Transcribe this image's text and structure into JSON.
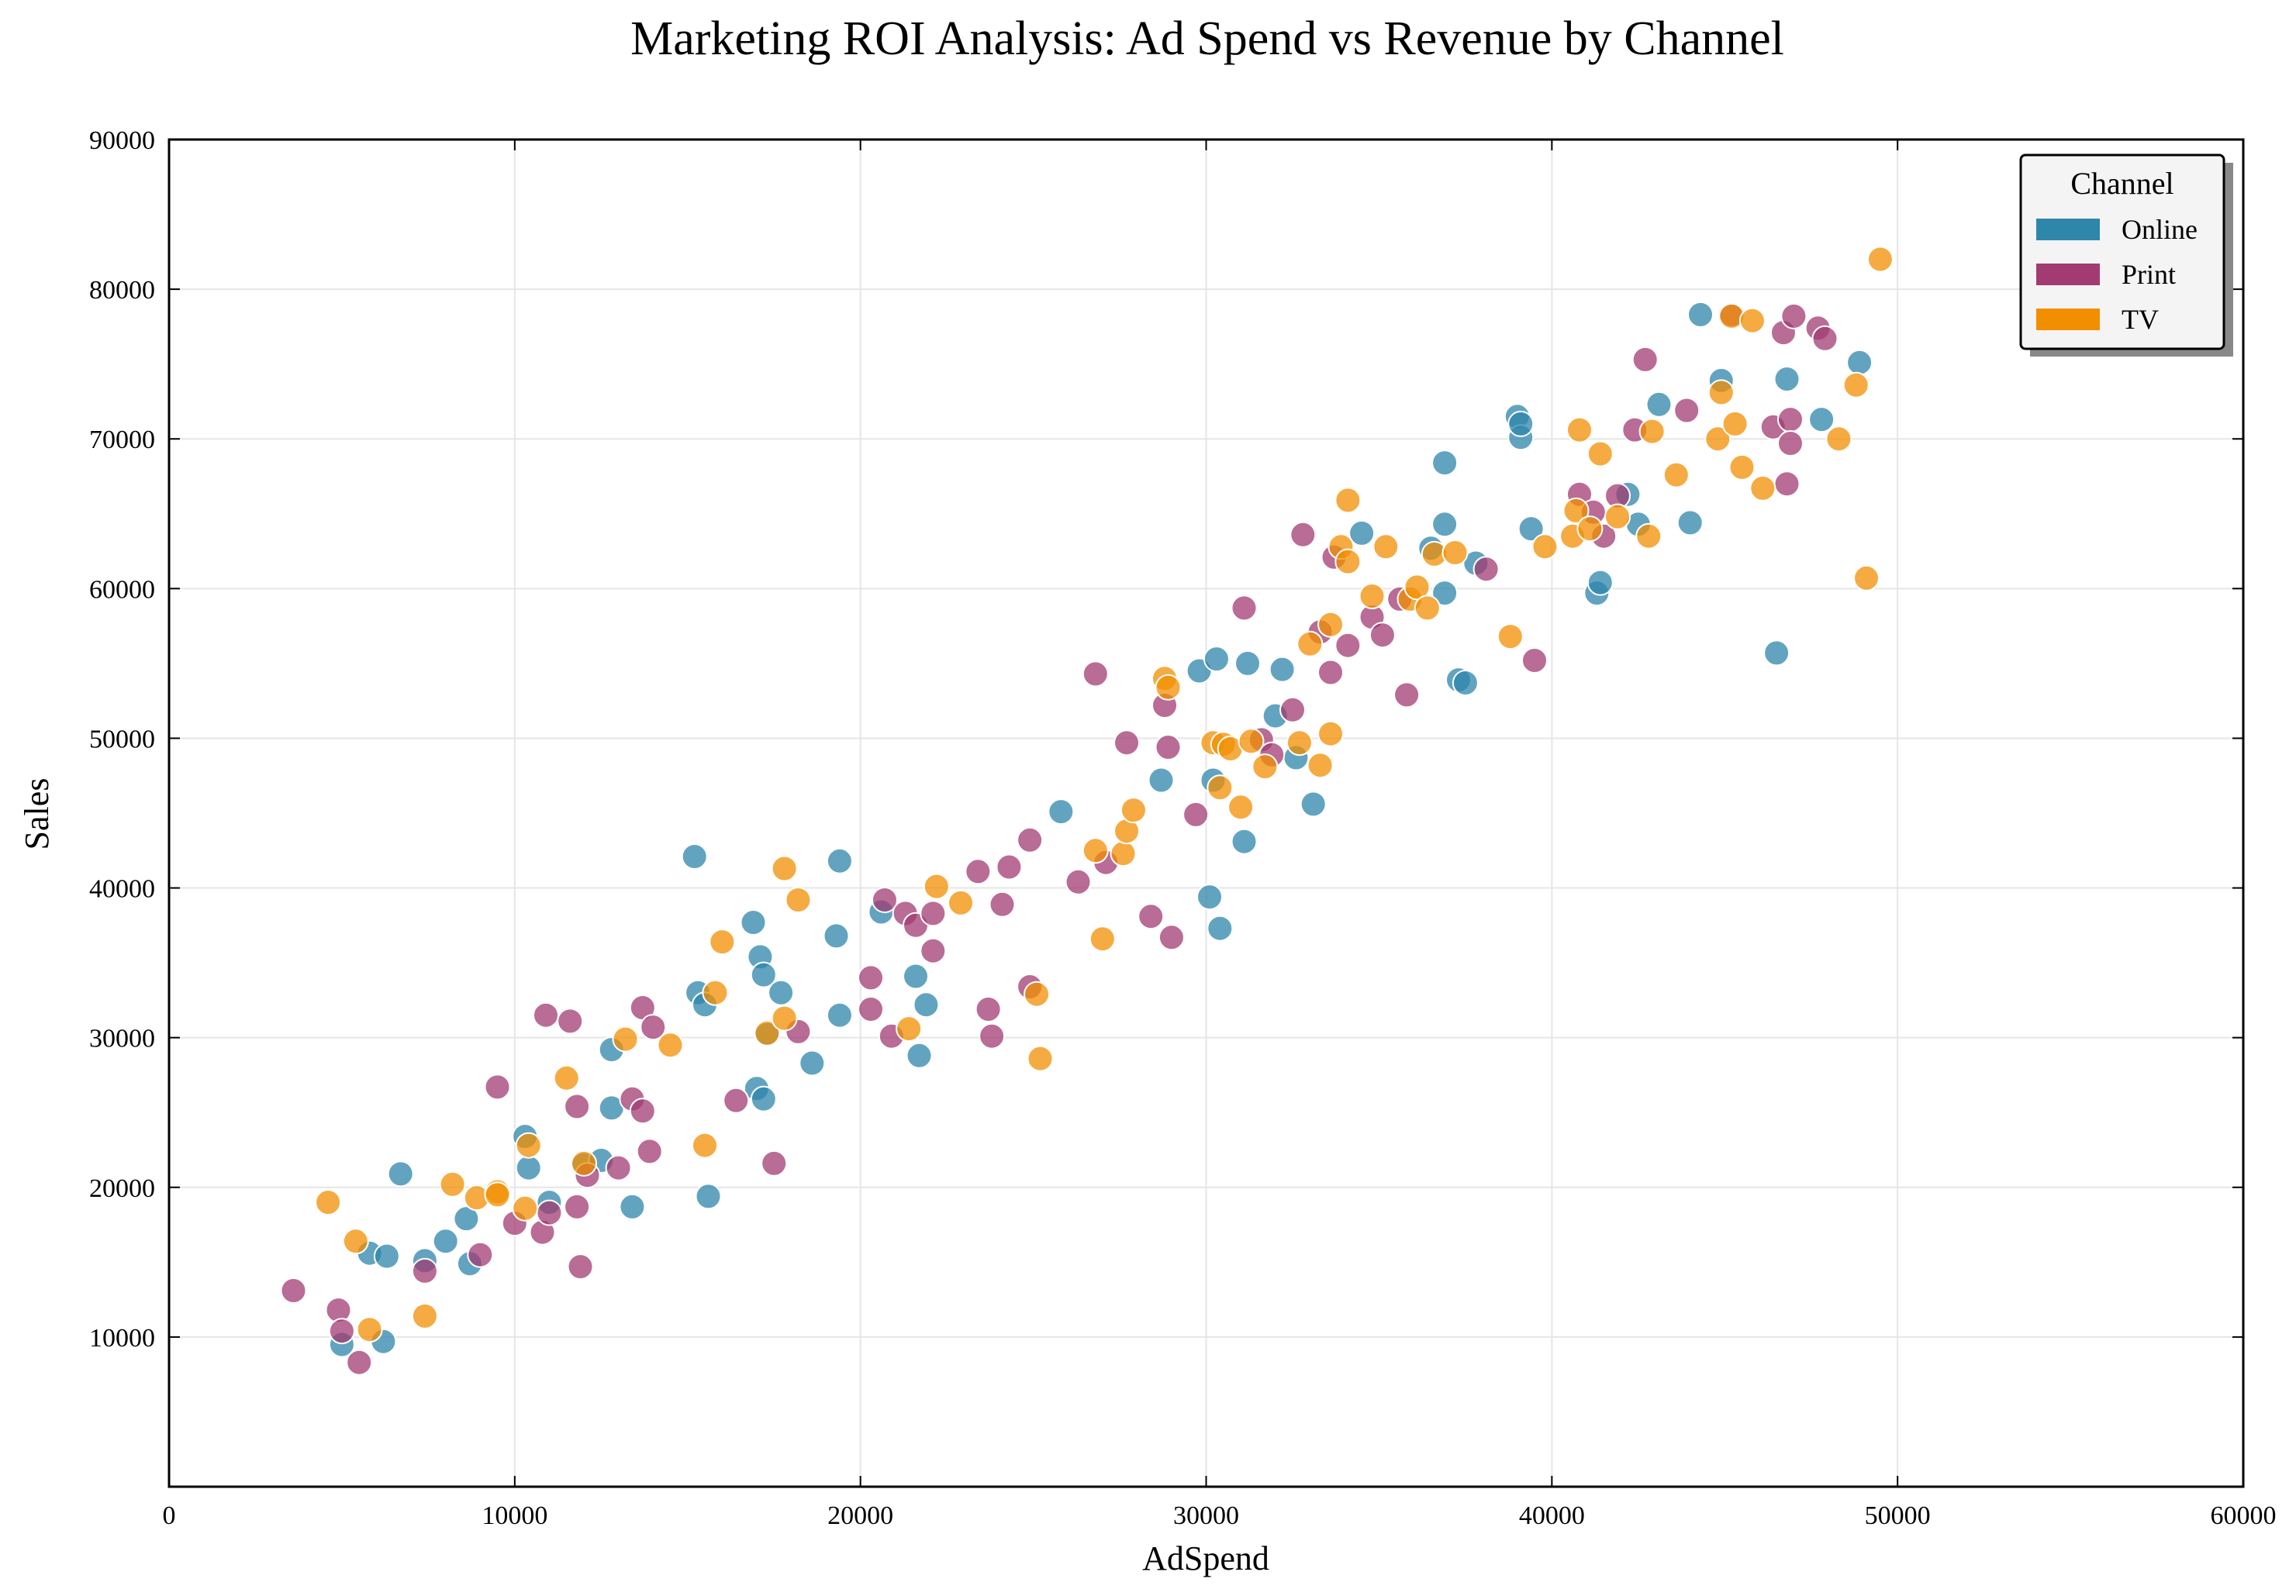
{
  "chart_data": {
    "type": "scatter",
    "title": "Marketing ROI Analysis: Ad Spend vs Revenue by Channel",
    "xlabel": "AdSpend",
    "ylabel": "Sales",
    "xlim": [
      0,
      60000
    ],
    "ylim": [
      0,
      90000
    ],
    "xticks": [
      0,
      10000,
      20000,
      30000,
      40000,
      50000,
      60000
    ],
    "yticks": [
      10000,
      20000,
      30000,
      40000,
      50000,
      60000,
      70000,
      80000,
      90000
    ],
    "grid": true,
    "legend": {
      "title": "Channel",
      "position": "top-right"
    },
    "series": [
      {
        "name": "Online",
        "color": "#2E86AB",
        "points": [
          [
            5000,
            9500
          ],
          [
            5800,
            15600
          ],
          [
            6300,
            15400
          ],
          [
            6200,
            9700
          ],
          [
            6700,
            20900
          ],
          [
            7400,
            15100
          ],
          [
            8000,
            16400
          ],
          [
            8600,
            17900
          ],
          [
            8700,
            14900
          ],
          [
            10300,
            23400
          ],
          [
            10400,
            21300
          ],
          [
            11000,
            19000
          ],
          [
            12000,
            21500
          ],
          [
            12500,
            21800
          ],
          [
            12800,
            29200
          ],
          [
            12800,
            25300
          ],
          [
            13400,
            18700
          ],
          [
            15200,
            42100
          ],
          [
            15300,
            33000
          ],
          [
            15500,
            32200
          ],
          [
            15600,
            19400
          ],
          [
            16900,
            37700
          ],
          [
            17000,
            26600
          ],
          [
            17100,
            35400
          ],
          [
            17200,
            34200
          ],
          [
            17300,
            30200
          ],
          [
            17200,
            25900
          ],
          [
            17700,
            33000
          ],
          [
            18600,
            28300
          ],
          [
            19300,
            36800
          ],
          [
            19400,
            31500
          ],
          [
            19400,
            41800
          ],
          [
            20600,
            38400
          ],
          [
            21600,
            34100
          ],
          [
            21700,
            28800
          ],
          [
            21900,
            32200
          ],
          [
            25800,
            45100
          ],
          [
            28700,
            47200
          ],
          [
            29800,
            54500
          ],
          [
            30100,
            39400
          ],
          [
            30200,
            47200
          ],
          [
            30300,
            55300
          ],
          [
            30400,
            37300
          ],
          [
            31100,
            43100
          ],
          [
            31200,
            55000
          ],
          [
            32000,
            51500
          ],
          [
            32200,
            54600
          ],
          [
            32600,
            48700
          ],
          [
            33100,
            45600
          ],
          [
            34500,
            63700
          ],
          [
            36500,
            62700
          ],
          [
            36900,
            64300
          ],
          [
            36900,
            68400
          ],
          [
            36900,
            59700
          ],
          [
            37300,
            53900
          ],
          [
            37500,
            53700
          ],
          [
            37800,
            61700
          ],
          [
            39000,
            71500
          ],
          [
            39100,
            70100
          ],
          [
            39100,
            71000
          ],
          [
            39400,
            64000
          ],
          [
            41300,
            59700
          ],
          [
            41400,
            60400
          ],
          [
            42200,
            66300
          ],
          [
            42500,
            64300
          ],
          [
            43100,
            72300
          ],
          [
            44000,
            64400
          ],
          [
            44300,
            78300
          ],
          [
            44900,
            73900
          ],
          [
            46500,
            55700
          ],
          [
            46800,
            74000
          ],
          [
            47800,
            71300
          ],
          [
            48900,
            75100
          ]
        ]
      },
      {
        "name": "Print",
        "color": "#A23B72",
        "points": [
          [
            3600,
            13100
          ],
          [
            4900,
            11800
          ],
          [
            5000,
            10400
          ],
          [
            5500,
            8300
          ],
          [
            7400,
            14400
          ],
          [
            9000,
            15500
          ],
          [
            9500,
            26700
          ],
          [
            10000,
            17600
          ],
          [
            10800,
            17000
          ],
          [
            10900,
            31500
          ],
          [
            11000,
            18300
          ],
          [
            11600,
            31100
          ],
          [
            11800,
            18700
          ],
          [
            11800,
            25400
          ],
          [
            11900,
            14700
          ],
          [
            12100,
            20800
          ],
          [
            13000,
            21300
          ],
          [
            13400,
            25900
          ],
          [
            13700,
            32000
          ],
          [
            13700,
            25100
          ],
          [
            13900,
            22400
          ],
          [
            14000,
            30700
          ],
          [
            18200,
            30400
          ],
          [
            17500,
            21600
          ],
          [
            20300,
            34000
          ],
          [
            20300,
            31900
          ],
          [
            20700,
            39200
          ],
          [
            20900,
            30100
          ],
          [
            21300,
            38300
          ],
          [
            21600,
            37500
          ],
          [
            22100,
            38300
          ],
          [
            22100,
            35800
          ],
          [
            23400,
            41100
          ],
          [
            23700,
            31900
          ],
          [
            23800,
            30100
          ],
          [
            24100,
            38900
          ],
          [
            24300,
            41400
          ],
          [
            24900,
            43200
          ],
          [
            24900,
            33400
          ],
          [
            16400,
            25800
          ],
          [
            26300,
            40400
          ],
          [
            26800,
            54300
          ],
          [
            27100,
            41700
          ],
          [
            27700,
            49700
          ],
          [
            28400,
            38100
          ],
          [
            28800,
            52200
          ],
          [
            28900,
            49400
          ],
          [
            29000,
            36700
          ],
          [
            29700,
            44900
          ],
          [
            31100,
            58700
          ],
          [
            31600,
            49900
          ],
          [
            31900,
            48900
          ],
          [
            32500,
            51900
          ],
          [
            32800,
            63600
          ],
          [
            33300,
            57100
          ],
          [
            33600,
            54400
          ],
          [
            33700,
            62100
          ],
          [
            34100,
            56200
          ],
          [
            34800,
            58100
          ],
          [
            35100,
            56900
          ],
          [
            35600,
            59300
          ],
          [
            35800,
            52900
          ],
          [
            38100,
            61300
          ],
          [
            39500,
            55200
          ],
          [
            40800,
            66300
          ],
          [
            41200,
            65100
          ],
          [
            41500,
            63500
          ],
          [
            41900,
            66200
          ],
          [
            42400,
            70600
          ],
          [
            42700,
            75300
          ],
          [
            43900,
            71900
          ],
          [
            45200,
            78300
          ],
          [
            46400,
            70800
          ],
          [
            46700,
            77100
          ],
          [
            46800,
            67000
          ],
          [
            46900,
            71300
          ],
          [
            46900,
            69700
          ],
          [
            47000,
            78200
          ],
          [
            47700,
            77400
          ],
          [
            47900,
            76700
          ]
        ]
      },
      {
        "name": "TV",
        "color": "#F18F01",
        "points": [
          [
            4600,
            19000
          ],
          [
            5400,
            16400
          ],
          [
            5800,
            10500
          ],
          [
            7400,
            11400
          ],
          [
            8200,
            20200
          ],
          [
            8900,
            19300
          ],
          [
            9500,
            19700
          ],
          [
            9500,
            19500
          ],
          [
            10300,
            18600
          ],
          [
            10400,
            22800
          ],
          [
            11500,
            27300
          ],
          [
            12000,
            21600
          ],
          [
            13200,
            29900
          ],
          [
            14500,
            29500
          ],
          [
            15500,
            22800
          ],
          [
            15800,
            33000
          ],
          [
            16000,
            36400
          ],
          [
            17300,
            30300
          ],
          [
            17800,
            41300
          ],
          [
            17800,
            31300
          ],
          [
            18200,
            39200
          ],
          [
            21400,
            30600
          ],
          [
            22200,
            40100
          ],
          [
            22900,
            39000
          ],
          [
            25100,
            32900
          ],
          [
            25200,
            28600
          ],
          [
            26800,
            42500
          ],
          [
            27000,
            36600
          ],
          [
            27600,
            42300
          ],
          [
            27700,
            43800
          ],
          [
            27900,
            45200
          ],
          [
            28800,
            54000
          ],
          [
            28900,
            53400
          ],
          [
            30200,
            49700
          ],
          [
            30400,
            46700
          ],
          [
            30500,
            49600
          ],
          [
            30700,
            49300
          ],
          [
            31000,
            45400
          ],
          [
            31300,
            49800
          ],
          [
            31700,
            48100
          ],
          [
            32700,
            49700
          ],
          [
            33000,
            56300
          ],
          [
            33300,
            48200
          ],
          [
            33600,
            57600
          ],
          [
            33600,
            50300
          ],
          [
            33900,
            62800
          ],
          [
            34100,
            61800
          ],
          [
            34100,
            65900
          ],
          [
            34800,
            59500
          ],
          [
            35200,
            62800
          ],
          [
            35900,
            59300
          ],
          [
            36100,
            60100
          ],
          [
            36400,
            58700
          ],
          [
            36600,
            62300
          ],
          [
            37200,
            62400
          ],
          [
            38800,
            56800
          ],
          [
            39800,
            62800
          ],
          [
            40600,
            63500
          ],
          [
            40700,
            65200
          ],
          [
            40800,
            70600
          ],
          [
            41100,
            64000
          ],
          [
            41400,
            69000
          ],
          [
            41900,
            64800
          ],
          [
            42800,
            63500
          ],
          [
            42900,
            70500
          ],
          [
            43600,
            67600
          ],
          [
            44800,
            70000
          ],
          [
            44900,
            73100
          ],
          [
            45200,
            78200
          ],
          [
            45300,
            71000
          ],
          [
            45500,
            68100
          ],
          [
            45800,
            77900
          ],
          [
            46100,
            66700
          ],
          [
            48300,
            70000
          ],
          [
            48800,
            73600
          ],
          [
            49100,
            60700
          ],
          [
            49500,
            82000
          ]
        ]
      }
    ]
  }
}
